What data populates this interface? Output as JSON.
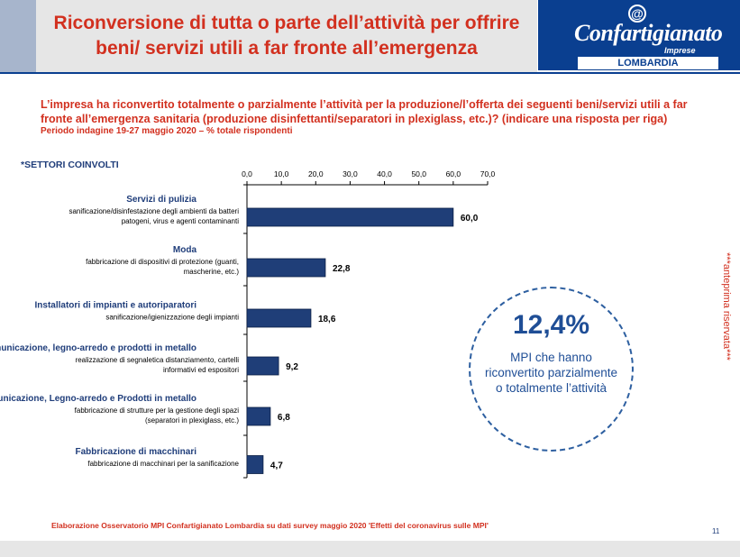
{
  "header": {
    "title_line1": "Riconversione di tutta o parte dell’attività per offrire",
    "title_line2": "beni/ servizi utili a far fronte all’emergenza",
    "logo_symbol": "@",
    "logo_name": "Confartigianato",
    "logo_sub": "Imprese",
    "logo_region": "LOMBARDIA"
  },
  "question": "L’impresa ha riconvertito totalmente o parzialmente l’attività per la produzione/l’offerta dei seguenti beni/servizi utili a far fronte all’emergenza sanitaria (produzione disinfettanti/separatori in plexiglass, etc.)? (indicare una risposta per riga)",
  "period": "Periodo indagine 19-27 maggio 2020 – % totale rispondenti",
  "sectors_label": "*SETTORI COINVOLTI",
  "chart_data": {
    "type": "bar",
    "orientation": "horizontal",
    "categories": [
      {
        "sector": "Servizi di pulizia",
        "item": "sanificazione/disinfestazione degli ambienti da batteri patogeni, virus e agenti contaminanti",
        "item_lines": [
          "sanificazione/disinfestazione degli ambienti da batteri",
          "patogeni, virus e agenti contaminanti"
        ]
      },
      {
        "sector": "Moda",
        "item": "fabbricazione di dispositivi di protezione (guanti, mascherine, etc.)",
        "item_lines": [
          "fabbricazione di dispositivi di protezione (guanti,",
          "mascherine, etc.)"
        ]
      },
      {
        "sector": "Installatori di impianti e autoriparatori",
        "item": "sanificazione/igienizzazione degli impianti",
        "item_lines": [
          "sanificazione/igienizzazione degli impianti"
        ]
      },
      {
        "sector": "Comunicazione, legno-arredo e prodotti in metallo",
        "item": "realizzazione di segnaletica distanziamento, cartelli informativi ed espositori",
        "item_lines": [
          "realizzazione di segnaletica distanziamento, cartelli",
          "informativi ed espositori"
        ]
      },
      {
        "sector": "Comunicazione, Legno-arredo e Prodotti in metallo",
        "item": "fabbricazione di strutture per la gestione degli spazi (separatori in plexiglass, etc.)",
        "item_lines": [
          "fabbricazione di strutture per la gestione degli spazi",
          "(separatori in plexiglass, etc.)"
        ]
      },
      {
        "sector": "Fabbricazione di macchinari",
        "item": "fabbricazione di macchinari per la sanificazione",
        "item_lines": [
          "fabbricazione di macchinari per la sanificazione"
        ]
      }
    ],
    "values": [
      60.0,
      22.8,
      18.6,
      9.2,
      6.8,
      4.7
    ],
    "value_labels": [
      "60,0",
      "22,8",
      "18,6",
      "9,2",
      "6,8",
      "4,7"
    ],
    "xlim": [
      0,
      70
    ],
    "x_ticks": [
      "0,0",
      "10,0",
      "20,0",
      "30,0",
      "40,0",
      "50,0",
      "60,0",
      "70,0"
    ],
    "axis_position": "top",
    "grid": false,
    "bar_color": "#1f3e78"
  },
  "highlight": {
    "value": "12,4%",
    "lines": [
      "MPI che hanno",
      "riconvertito parzialmente",
      "o totalmente l’attività"
    ]
  },
  "side_note": "***anteprima riservata***",
  "footer": {
    "source": "Elaborazione Osservatorio MPI Confartigianato Lombardia su dati survey maggio 2020  'Effetti del coronavirus sulle MPI'",
    "page_number": "11"
  }
}
